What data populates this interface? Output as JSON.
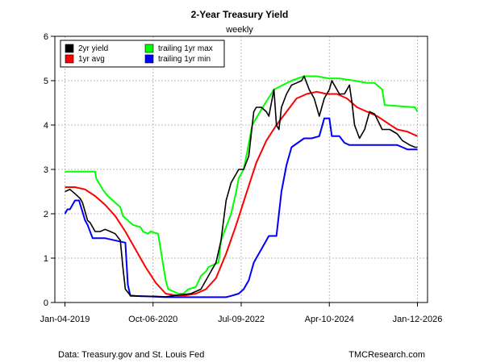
{
  "chart_data": {
    "type": "line",
    "title": "2-Year Treasury Yield",
    "subtitle": "weekly",
    "xlabel": "",
    "ylabel": "",
    "ylim": [
      0,
      6
    ],
    "yticks": [
      0,
      1,
      2,
      3,
      4,
      5,
      6
    ],
    "xtick_labels": [
      "Jan-04-2019",
      "Oct-06-2020",
      "Jul-09-2022",
      "Apr-10-2024",
      "Jan-12-2026"
    ],
    "xtick_times": [
      2019.0,
      2020.75,
      2022.5,
      2024.25,
      2026.0
    ],
    "xlim": [
      2018.8,
      2026.2
    ],
    "grid": true,
    "legend_position": "top-left",
    "series": [
      {
        "name": "2yr yield",
        "color": "#000000",
        "x": [
          2019.0,
          2019.1,
          2019.2,
          2019.3,
          2019.35,
          2019.45,
          2019.5,
          2019.6,
          2019.7,
          2019.8,
          2019.9,
          2020.0,
          2020.1,
          2020.15,
          2020.2,
          2020.3,
          2020.5,
          2020.75,
          2021.0,
          2021.2,
          2021.5,
          2021.7,
          2021.8,
          2021.9,
          2022.0,
          2022.1,
          2022.2,
          2022.3,
          2022.4,
          2022.45,
          2022.55,
          2022.65,
          2022.7,
          2022.75,
          2022.8,
          2022.9,
          2023.0,
          2023.05,
          2023.15,
          2023.2,
          2023.25,
          2023.3,
          2023.4,
          2023.5,
          2023.6,
          2023.7,
          2023.75,
          2023.85,
          2023.95,
          2024.05,
          2024.15,
          2024.25,
          2024.3,
          2024.35,
          2024.45,
          2024.55,
          2024.65,
          2024.7,
          2024.75,
          2024.85,
          2024.95,
          2025.05,
          2025.15,
          2025.3,
          2025.45,
          2025.6,
          2025.7,
          2025.85,
          2025.95,
          2026.0
        ],
        "y": [
          2.5,
          2.55,
          2.45,
          2.35,
          2.25,
          1.85,
          1.8,
          1.6,
          1.6,
          1.65,
          1.6,
          1.55,
          1.4,
          0.8,
          0.3,
          0.16,
          0.14,
          0.14,
          0.13,
          0.16,
          0.2,
          0.3,
          0.5,
          0.7,
          0.9,
          1.4,
          2.3,
          2.7,
          2.9,
          3.0,
          3.0,
          3.3,
          3.8,
          4.3,
          4.4,
          4.4,
          4.3,
          4.2,
          4.8,
          4.0,
          3.9,
          4.4,
          4.7,
          4.9,
          4.95,
          5.0,
          5.1,
          4.8,
          4.6,
          4.2,
          4.6,
          4.8,
          5.0,
          4.9,
          4.7,
          4.7,
          4.9,
          4.5,
          4.0,
          3.7,
          3.9,
          4.3,
          4.25,
          3.9,
          3.9,
          3.8,
          3.65,
          3.55,
          3.5,
          3.5
        ]
      },
      {
        "name": "1yr avg",
        "color": "#ff0000",
        "x": [
          2019.0,
          2019.2,
          2019.4,
          2019.6,
          2019.8,
          2020.0,
          2020.2,
          2020.4,
          2020.6,
          2020.8,
          2021.0,
          2021.2,
          2021.4,
          2021.6,
          2021.8,
          2022.0,
          2022.2,
          2022.4,
          2022.6,
          2022.8,
          2023.0,
          2023.2,
          2023.4,
          2023.6,
          2023.8,
          2024.0,
          2024.2,
          2024.4,
          2024.6,
          2024.8,
          2025.0,
          2025.2,
          2025.4,
          2025.6,
          2025.8,
          2026.0
        ],
        "y": [
          2.6,
          2.6,
          2.55,
          2.4,
          2.2,
          1.95,
          1.6,
          1.2,
          0.8,
          0.45,
          0.2,
          0.16,
          0.16,
          0.2,
          0.3,
          0.55,
          1.1,
          1.75,
          2.45,
          3.15,
          3.65,
          4.0,
          4.3,
          4.6,
          4.7,
          4.75,
          4.7,
          4.7,
          4.6,
          4.4,
          4.3,
          4.2,
          4.05,
          3.9,
          3.85,
          3.75
        ]
      },
      {
        "name": "trailing 1yr max",
        "color": "#00ff00",
        "x": [
          2019.0,
          2019.6,
          2019.62,
          2019.75,
          2019.85,
          2020.1,
          2020.15,
          2020.3,
          2020.35,
          2020.5,
          2020.55,
          2020.65,
          2020.7,
          2020.85,
          2021.0,
          2021.05,
          2021.25,
          2021.35,
          2021.45,
          2021.6,
          2021.7,
          2021.8,
          2021.85,
          2022.05,
          2022.1,
          2022.3,
          2022.4,
          2022.45,
          2022.55,
          2022.62,
          2022.72,
          2022.9,
          2023.15,
          2023.5,
          2023.75,
          2024.0,
          2024.25,
          2024.45,
          2024.75,
          2025.0,
          2025.15,
          2025.3,
          2025.35,
          2025.95,
          2026.0
        ],
        "y": [
          2.95,
          2.95,
          2.8,
          2.55,
          2.4,
          2.15,
          1.95,
          1.8,
          1.75,
          1.7,
          1.6,
          1.55,
          1.6,
          1.55,
          0.5,
          0.3,
          0.2,
          0.2,
          0.3,
          0.35,
          0.6,
          0.7,
          0.8,
          0.9,
          1.4,
          2.0,
          2.5,
          2.8,
          3.0,
          3.4,
          4.0,
          4.35,
          4.8,
          5.0,
          5.1,
          5.1,
          5.05,
          5.05,
          5.0,
          4.95,
          4.95,
          4.8,
          4.45,
          4.4,
          4.3
        ]
      },
      {
        "name": "trailing 1yr min",
        "color": "#0000ff",
        "x": [
          2019.0,
          2019.05,
          2019.1,
          2019.2,
          2019.28,
          2019.4,
          2019.45,
          2019.55,
          2019.65,
          2019.8,
          2020.2,
          2020.25,
          2020.3,
          2020.6,
          2021.0,
          2021.5,
          2022.0,
          2022.2,
          2022.3,
          2022.45,
          2022.55,
          2022.6,
          2022.65,
          2022.7,
          2022.75,
          2022.9,
          2023.05,
          2023.2,
          2023.3,
          2023.4,
          2023.5,
          2023.75,
          2023.9,
          2024.05,
          2024.15,
          2024.25,
          2024.3,
          2024.45,
          2024.55,
          2024.65,
          2025.0,
          2025.3,
          2025.6,
          2025.7,
          2025.8,
          2026.0
        ],
        "y": [
          2.0,
          2.1,
          2.1,
          2.3,
          2.3,
          1.85,
          1.75,
          1.45,
          1.45,
          1.45,
          1.35,
          0.4,
          0.15,
          0.14,
          0.12,
          0.12,
          0.12,
          0.12,
          0.15,
          0.2,
          0.3,
          0.4,
          0.5,
          0.7,
          0.9,
          1.2,
          1.5,
          1.5,
          2.5,
          3.1,
          3.5,
          3.7,
          3.7,
          3.75,
          4.15,
          4.15,
          3.75,
          3.75,
          3.6,
          3.55,
          3.55,
          3.55,
          3.55,
          3.5,
          3.45,
          3.45
        ]
      }
    ]
  },
  "footer": {
    "source": "Data: Treasury.gov and St. Louis Fed",
    "credit": "TMCResearch.com"
  }
}
